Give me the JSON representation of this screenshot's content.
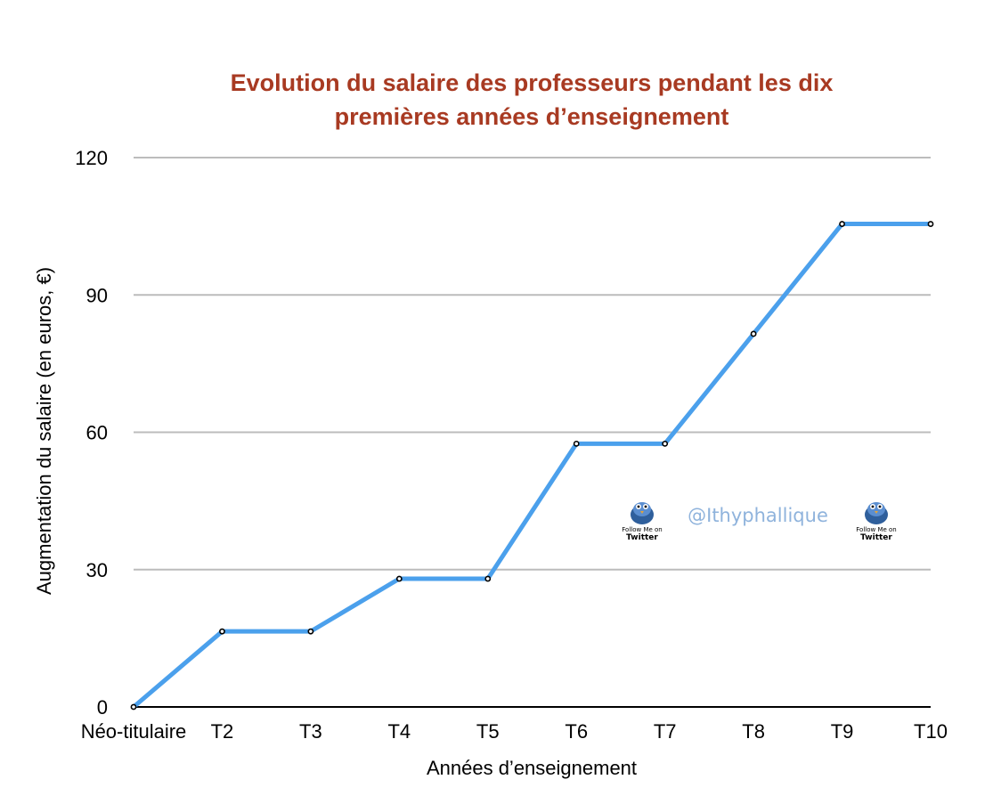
{
  "chart_data": {
    "type": "line",
    "title": [
      "Evolution du salaire des professeurs pendant les dix",
      "premières années d’enseignement"
    ],
    "xlabel": "Années d’enseignement",
    "ylabel": "Augmentation du salaire (en euros, €)",
    "categories": [
      "Néo-titulaire",
      "T2",
      "T3",
      "T4",
      "T5",
      "T6",
      "T7",
      "T8",
      "T9",
      "T10"
    ],
    "series": [
      {
        "values": [
          0,
          16.5,
          16.5,
          28,
          28,
          57.5,
          57.5,
          81.5,
          105.5,
          105.5
        ]
      }
    ],
    "ylim": [
      0,
      120
    ],
    "yticks": [
      0,
      30,
      60,
      90,
      120
    ],
    "grid": true,
    "legend": "none"
  },
  "colors": {
    "title": "#a83a22",
    "line": "#4ba0ec",
    "grid": "#bcbcbc",
    "axis": "#000000",
    "watermark": "#8fb3dc"
  },
  "watermark": {
    "handle": "@Ithyphallique",
    "badge_small": "Follow Me on",
    "badge_big": "Twitter",
    "icon": "twitter-bird-icon"
  }
}
